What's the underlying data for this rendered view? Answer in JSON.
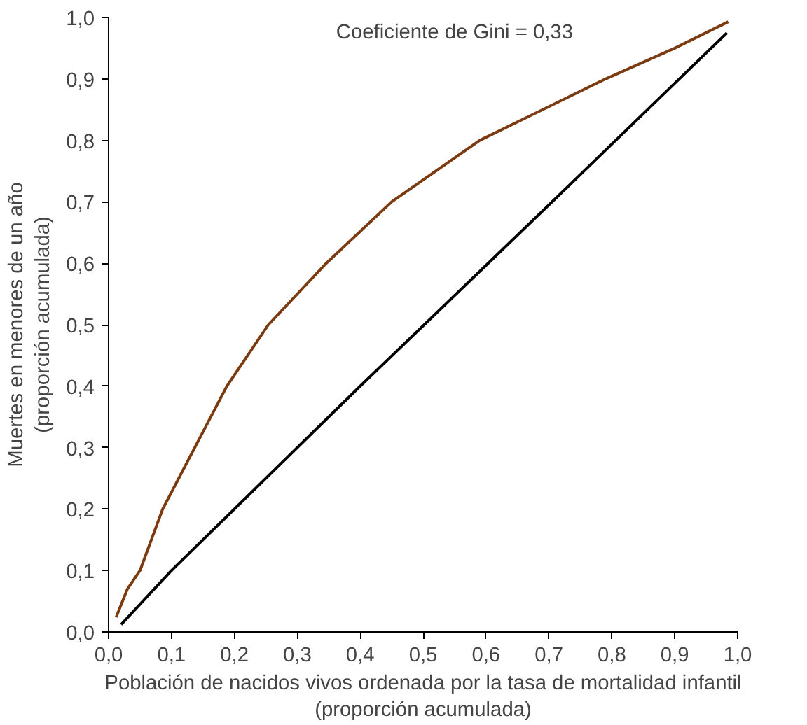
{
  "chart_data": {
    "type": "line",
    "xlabel": "Población de nacidos vivos ordenada por la tasa de mortalidad infantil\n(proporción acumulada)",
    "ylabel": "Muertes en menores de un año\n(proporción acumulada)",
    "annotations": [
      "Coeficiente de Gini = 0,33"
    ],
    "series": [
      {
        "color": "#7b3a10",
        "x": [
          0.012,
          0.03,
          0.05,
          0.086,
          0.137,
          0.188,
          0.254,
          0.346,
          0.45,
          0.59,
          0.79,
          0.9,
          0.985
        ],
        "values": [
          0.024,
          0.07,
          0.1,
          0.2,
          0.3,
          0.4,
          0.5,
          0.6,
          0.7,
          0.8,
          0.9,
          0.95,
          0.993
        ]
      },
      {
        "color": "#000000",
        "x": [
          0.02,
          0.1,
          0.4,
          0.7,
          0.983
        ],
        "values": [
          0.012,
          0.1,
          0.4,
          0.695,
          0.975
        ]
      }
    ],
    "xlim": [
      0,
      1
    ],
    "ylim": [
      0,
      1
    ],
    "xticks": [
      {
        "value": 0,
        "label": "0,0"
      },
      {
        "value": 0.1,
        "label": "0,1"
      },
      {
        "value": 0.2,
        "label": "0,2"
      },
      {
        "value": 0.3,
        "label": "0,3"
      },
      {
        "value": 0.4,
        "label": "0,4"
      },
      {
        "value": 0.5,
        "label": "0,5"
      },
      {
        "value": 0.6,
        "label": "0,6"
      },
      {
        "value": 0.7,
        "label": "0,7"
      },
      {
        "value": 0.8,
        "label": "0,8"
      },
      {
        "value": 0.9,
        "label": "0,9"
      },
      {
        "value": 1,
        "label": "1,0"
      }
    ],
    "yticks": [
      {
        "value": 0,
        "label": "0,0"
      },
      {
        "value": 0.1,
        "label": "0,1"
      },
      {
        "value": 0.2,
        "label": "0,2"
      },
      {
        "value": 0.3,
        "label": "0,3"
      },
      {
        "value": 0.4,
        "label": "0,4"
      },
      {
        "value": 0.5,
        "label": "0,5"
      },
      {
        "value": 0.6,
        "label": "0,6"
      },
      {
        "value": 0.7,
        "label": "0,7"
      },
      {
        "value": 0.8,
        "label": "0,8"
      },
      {
        "value": 0.9,
        "label": "0,9"
      },
      {
        "value": 1,
        "label": "1,0"
      }
    ],
    "grid": false,
    "marker": "none",
    "line_style": "solid"
  }
}
